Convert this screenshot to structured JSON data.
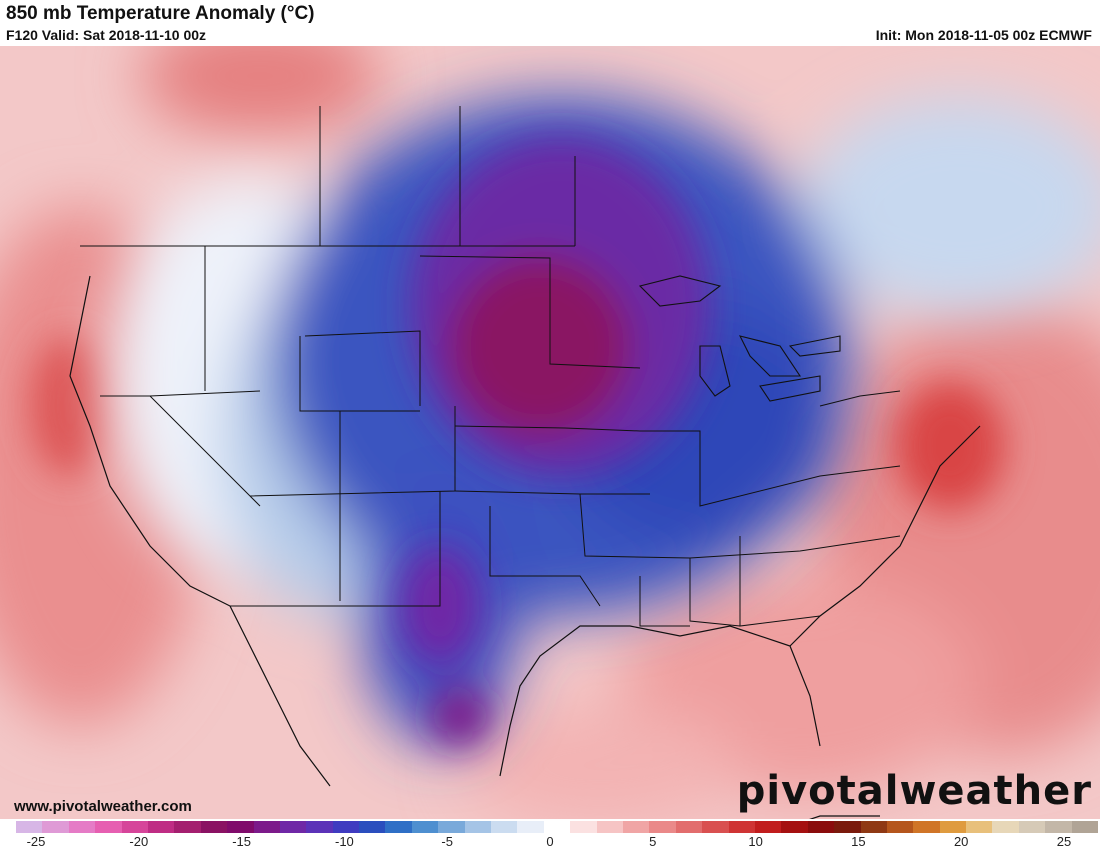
{
  "header": {
    "title": "850 mb Temperature Anomaly (°C)",
    "valid": "F120 Valid: Sat 2018-11-10 00z",
    "init": "Init: Mon 2018-11-05 00z ECMWF"
  },
  "footer": {
    "url": "www.pivotalweather.com",
    "brand": "pivotalweather"
  },
  "colorbar": {
    "ticks": [
      "-25",
      "-20",
      "-15",
      "-10",
      "-5",
      "0",
      "5",
      "10",
      "15",
      "20",
      "25"
    ],
    "colors": [
      "#d7b6e6",
      "#df9ad6",
      "#e57bc6",
      "#e65fb1",
      "#d6459a",
      "#bf2d84",
      "#a41f6f",
      "#8a1263",
      "#800b6b",
      "#7c1a8a",
      "#6f28a6",
      "#5b32b8",
      "#3f3bc0",
      "#2a4ebe",
      "#2f6fc6",
      "#4e8fd0",
      "#79a9da",
      "#a5c4e6",
      "#cbdcf0",
      "#e8eef8",
      "#ffffff",
      "#fbe1e1",
      "#f6c4c4",
      "#f0a5a5",
      "#ea8989",
      "#e26d6d",
      "#d95050",
      "#cf3434",
      "#c11d1d",
      "#a51010",
      "#8a0c0c",
      "#7a1a0c",
      "#8f3914",
      "#b5561c",
      "#d07527",
      "#df9b3f",
      "#e8c07b",
      "#e7d7b8",
      "#d6cab7",
      "#c3b7a8",
      "#b0a496"
    ]
  }
}
